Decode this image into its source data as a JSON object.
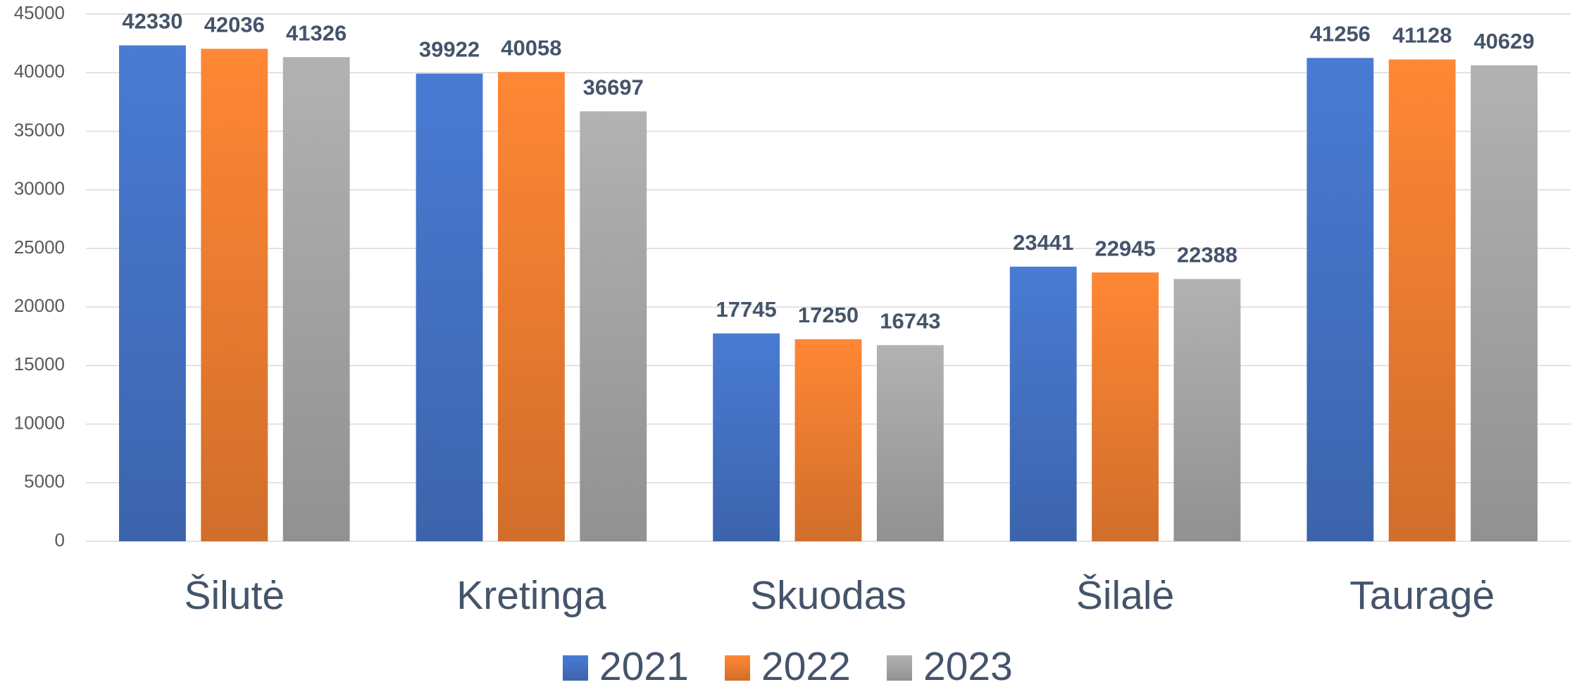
{
  "chart_data": {
    "type": "bar",
    "categories": [
      "Šilutė",
      "Kretinga",
      "Skuodas",
      "Šilalė",
      "Tauragė"
    ],
    "series": [
      {
        "name": "2021",
        "color": "#4472c4",
        "values": [
          42330,
          39922,
          17745,
          23441,
          41256
        ]
      },
      {
        "name": "2022",
        "color": "#ed7d31",
        "values": [
          42036,
          40058,
          17250,
          22945,
          41128
        ]
      },
      {
        "name": "2023",
        "color": "#a5a5a5",
        "values": [
          41326,
          36697,
          16743,
          22388,
          40629
        ]
      }
    ],
    "ylim": [
      0,
      45000
    ],
    "yticks": [
      0,
      5000,
      10000,
      15000,
      20000,
      25000,
      30000,
      35000,
      40000,
      45000
    ],
    "grid": true,
    "legend": "bottom"
  }
}
